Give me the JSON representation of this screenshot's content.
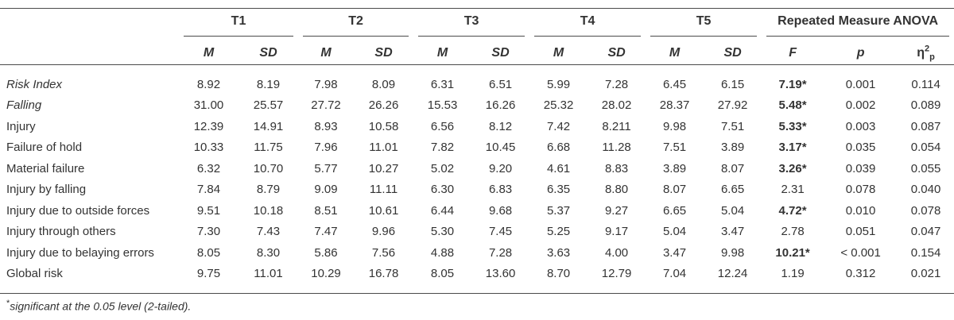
{
  "table": {
    "groups": [
      "T1",
      "T2",
      "T3",
      "T4",
      "T5",
      "Repeated Measure ANOVA"
    ],
    "subheaders": [
      "M",
      "SD",
      "M",
      "SD",
      "M",
      "SD",
      "M",
      "SD",
      "M",
      "SD",
      "F",
      "p"
    ],
    "eta_symbol": "η",
    "eta_sup": "2",
    "eta_sub": "p",
    "rows": [
      {
        "label": "Risk Index",
        "italic": true,
        "values": [
          "8.92",
          "8.19",
          "7.98",
          "8.09",
          "6.31",
          "6.51",
          "5.99",
          "7.28",
          "6.45",
          "6.15",
          "7.19*",
          "0.001",
          "0.114"
        ],
        "f_bold": true
      },
      {
        "label": "Falling",
        "italic": true,
        "values": [
          "31.00",
          "25.57",
          "27.72",
          "26.26",
          "15.53",
          "16.26",
          "25.32",
          "28.02",
          "28.37",
          "27.92",
          "5.48*",
          "0.002",
          "0.089"
        ],
        "f_bold": true
      },
      {
        "label": "Injury",
        "italic": false,
        "values": [
          "12.39",
          "14.91",
          "8.93",
          "10.58",
          "6.56",
          "8.12",
          "7.42",
          "8.211",
          "9.98",
          "7.51",
          "5.33*",
          "0.003",
          "0.087"
        ],
        "f_bold": true
      },
      {
        "label": "Failure of hold",
        "italic": false,
        "values": [
          "10.33",
          "11.75",
          "7.96",
          "11.01",
          "7.82",
          "10.45",
          "6.68",
          "11.28",
          "7.51",
          "3.89",
          "3.17*",
          "0.035",
          "0.054"
        ],
        "f_bold": true
      },
      {
        "label": "Material failure",
        "italic": false,
        "values": [
          "6.32",
          "10.70",
          "5.77",
          "10.27",
          "5.02",
          "9.20",
          "4.61",
          "8.83",
          "3.89",
          "8.07",
          "3.26*",
          "0.039",
          "0.055"
        ],
        "f_bold": true
      },
      {
        "label": "Injury by falling",
        "italic": false,
        "values": [
          "7.84",
          "8.79",
          "9.09",
          "11.11",
          "6.30",
          "6.83",
          "6.35",
          "8.80",
          "8.07",
          "6.65",
          "2.31",
          "0.078",
          "0.040"
        ],
        "f_bold": false
      },
      {
        "label": "Injury due to outside forces",
        "italic": false,
        "values": [
          "9.51",
          "10.18",
          "8.51",
          "10.61",
          "6.44",
          "9.68",
          "5.37",
          "9.27",
          "6.65",
          "5.04",
          "4.72*",
          "0.010",
          "0.078"
        ],
        "f_bold": true
      },
      {
        "label": "Injury through others",
        "italic": false,
        "values": [
          "7.30",
          "7.43",
          "7.47",
          "9.96",
          "5.30",
          "7.45",
          "5.25",
          "9.17",
          "5.04",
          "3.47",
          "2.78",
          "0.051",
          "0.047"
        ],
        "f_bold": false
      },
      {
        "label": "Injury due to belaying errors",
        "italic": false,
        "values": [
          "8.05",
          "8.30",
          "5.86",
          "7.56",
          "4.88",
          "7.28",
          "3.63",
          "4.00",
          "3.47",
          "9.98",
          "10.21*",
          "< 0.001",
          "0.154"
        ],
        "f_bold": true
      },
      {
        "label": "Global risk",
        "italic": false,
        "values": [
          "9.75",
          "11.01",
          "10.29",
          "16.78",
          "8.05",
          "13.60",
          "8.70",
          "12.79",
          "7.04",
          "12.24",
          "1.19",
          "0.312",
          "0.021"
        ],
        "f_bold": false
      }
    ]
  },
  "footnote": {
    "marker": "*",
    "text": "significant at the 0.05 level (2-tailed)."
  }
}
